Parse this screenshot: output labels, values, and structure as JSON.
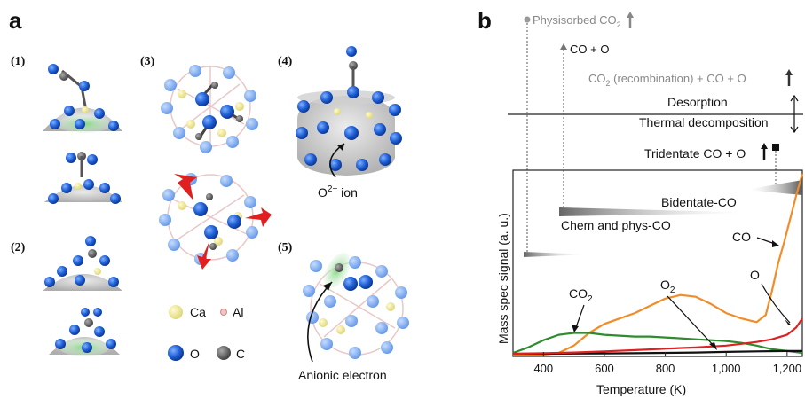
{
  "panel_a": {
    "letter": "a",
    "sublabels": [
      "(1)",
      "(2)",
      "(3)",
      "(4)",
      "(5)"
    ],
    "legend": {
      "ca": "Ca",
      "al": "Al",
      "o": "O",
      "c": "C"
    },
    "o2_ion": "O",
    "o2_ion_sup": "2−",
    "o2_ion_suffix": " ion",
    "anionic_electron": "Anionic electron"
  },
  "panel_b": {
    "letter": "b",
    "physisorbed": "Physisorbed CO",
    "physisorbed_sub": "2",
    "co_o": "CO + O",
    "co2_recomb_pre": "CO",
    "co2_recomb_sub": "2",
    "co2_recomb_post": " (recombination) + CO + O",
    "desorption": "Desorption",
    "thermal": "Thermal decomposition",
    "tridentate": "Tridentate CO + O",
    "bidentate": "Bidentate-CO",
    "chem_phys": "Chem and phys-CO",
    "label_co": "CO",
    "label_co2": "CO",
    "label_co2_sub": "2",
    "label_o2": "O",
    "label_o2_sub": "2",
    "label_o": "O",
    "colors": {
      "co": "#f28c28",
      "co2": "#2e8b2e",
      "o2": "#111111",
      "o": "#e02020",
      "grey_text": "#888888"
    }
  },
  "chart_data": {
    "type": "line",
    "xlabel": "Temperature (K)",
    "ylabel": "Mass spec signal (a. u.)",
    "xlim": [
      300,
      1250
    ],
    "xticks": [
      400,
      600,
      800,
      1000,
      1200
    ],
    "xtick_labels": [
      "400",
      "600",
      "800",
      "1,000",
      "1,200"
    ],
    "series": [
      {
        "name": "CO",
        "color": "#f28c28",
        "x": [
          300,
          400,
          450,
          500,
          550,
          600,
          650,
          700,
          750,
          800,
          850,
          900,
          950,
          1000,
          1050,
          1100,
          1130,
          1150,
          1170,
          1190,
          1210,
          1230,
          1250
        ],
        "y": [
          0.0,
          0.0,
          0.01,
          0.05,
          0.12,
          0.17,
          0.2,
          0.23,
          0.27,
          0.31,
          0.33,
          0.32,
          0.28,
          0.23,
          0.2,
          0.18,
          0.22,
          0.35,
          0.5,
          0.62,
          0.75,
          0.88,
          1.0
        ]
      },
      {
        "name": "CO2",
        "color": "#2e8b2e",
        "x": [
          300,
          350,
          400,
          450,
          500,
          550,
          600,
          650,
          700,
          750,
          800,
          850,
          900,
          950,
          1000,
          1050,
          1100,
          1150,
          1200,
          1250
        ],
        "y": [
          0.01,
          0.04,
          0.08,
          0.11,
          0.12,
          0.12,
          0.11,
          0.105,
          0.1,
          0.1,
          0.095,
          0.09,
          0.085,
          0.08,
          0.075,
          0.065,
          0.05,
          0.03,
          0.02,
          0.01
        ]
      },
      {
        "name": "O2",
        "color": "#111111",
        "x": [
          300,
          400,
          500,
          600,
          700,
          800,
          900,
          1000,
          1100,
          1200,
          1250
        ],
        "y": [
          0.005,
          0.005,
          0.006,
          0.007,
          0.008,
          0.01,
          0.012,
          0.015,
          0.018,
          0.02,
          0.02
        ]
      },
      {
        "name": "O",
        "color": "#e02020",
        "x": [
          300,
          400,
          500,
          600,
          700,
          800,
          900,
          1000,
          1050,
          1100,
          1150,
          1200,
          1230,
          1250
        ],
        "y": [
          0.005,
          0.008,
          0.012,
          0.018,
          0.025,
          0.033,
          0.04,
          0.05,
          0.06,
          0.07,
          0.085,
          0.11,
          0.15,
          0.2
        ]
      }
    ]
  }
}
